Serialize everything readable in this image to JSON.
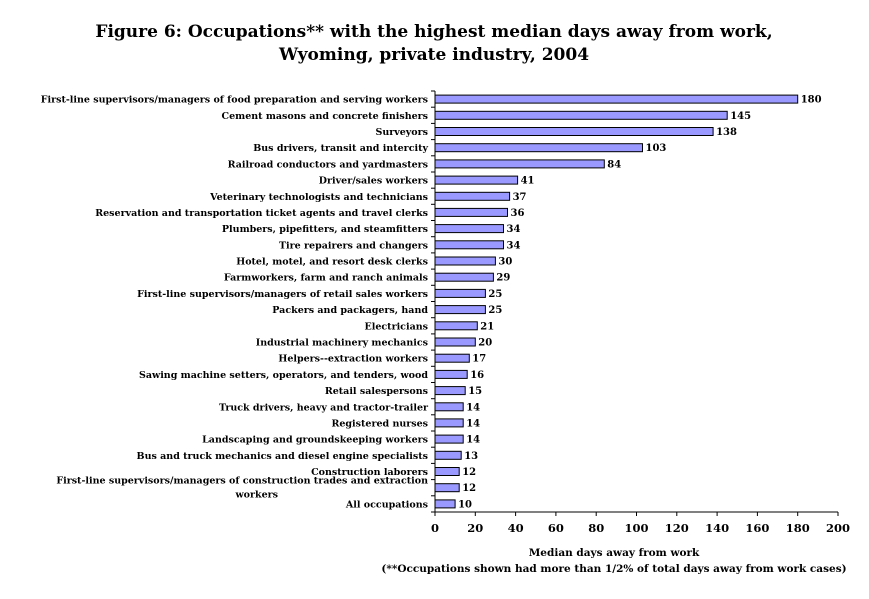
{
  "chart_data": {
    "type": "bar",
    "orientation": "horizontal",
    "title": [
      "Figure 6:  Occupations** with the highest median days away from work,",
      "Wyoming, private industry, 2004"
    ],
    "xlabel": "Median days away from work",
    "footnote": "(**Occupations shown had more than 1/2% of total days away from work cases)",
    "xlim": [
      0,
      200
    ],
    "xticks": [
      0,
      20,
      40,
      60,
      80,
      100,
      120,
      140,
      160,
      180,
      200
    ],
    "bar_color": "#9999ff",
    "grid": false,
    "categories": [
      "First-line supervisors/managers of food preparation and serving workers",
      "Cement masons and concrete finishers",
      "Surveyors",
      "Bus drivers, transit and intercity",
      "Railroad conductors and yardmasters",
      "Driver/sales workers",
      "Veterinary technologists and technicians",
      "Reservation and transportation ticket agents and travel clerks",
      "Plumbers, pipefitters, and steamfitters",
      "Tire repairers and changers",
      "Hotel, motel, and resort desk clerks",
      "Farmworkers, farm and ranch animals",
      "First-line supervisors/managers of retail sales workers",
      "Packers and packagers, hand",
      "Electricians",
      "Industrial machinery mechanics",
      "Helpers--extraction workers",
      "Sawing machine setters, operators, and tenders, wood",
      "Retail salespersons",
      "Truck drivers, heavy and tractor-trailer",
      "Registered nurses",
      "Landscaping and groundskeeping workers",
      "Bus and truck mechanics and diesel engine specialists",
      "Construction laborers",
      "First-line supervisors/managers of construction trades and extraction workers",
      "All occupations"
    ],
    "values": [
      180,
      145,
      138,
      103,
      84,
      41,
      37,
      36,
      34,
      34,
      30,
      29,
      25,
      25,
      21,
      20,
      17,
      16,
      15,
      14,
      14,
      14,
      13,
      12,
      12,
      10
    ]
  }
}
